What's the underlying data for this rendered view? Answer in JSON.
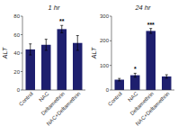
{
  "chart_data": [
    {
      "type": "bar",
      "title": "1 hr",
      "ylabel": "ALT",
      "categories": [
        "Control",
        "NAC",
        "Deltamethrin",
        "NAC+Deltamethrin"
      ],
      "values": [
        44,
        49,
        66,
        51
      ],
      "errors": [
        6,
        6,
        4,
        8
      ],
      "color": "#1e1f6e",
      "ylim": [
        0,
        80
      ],
      "yticks": [
        0,
        20,
        40,
        60,
        80
      ],
      "grid": false,
      "annotations": [
        {
          "category": "Deltamethrin",
          "text": "**"
        }
      ]
    },
    {
      "type": "bar",
      "title": "24 hr",
      "ylabel": "ALT",
      "categories": [
        "Control",
        "NAC",
        "Deltamethrin",
        "NAC+Deltamethrin"
      ],
      "values": [
        42,
        60,
        240,
        55
      ],
      "errors": [
        5,
        8,
        10,
        7
      ],
      "color": "#1e1f6e",
      "ylim": [
        0,
        300
      ],
      "yticks": [
        0,
        100,
        200,
        300
      ],
      "grid": false,
      "annotations": [
        {
          "category": "NAC",
          "text": "*"
        },
        {
          "category": "Deltamethrin",
          "text": "***"
        }
      ]
    }
  ]
}
